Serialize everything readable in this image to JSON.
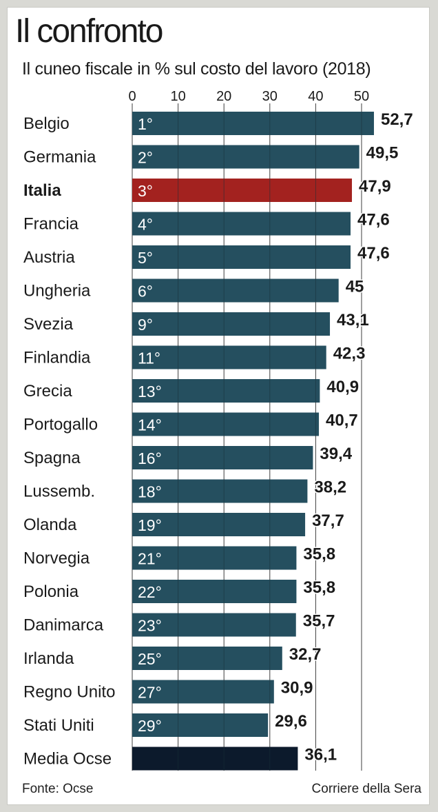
{
  "title": "Il confronto",
  "subtitle": "Il cuneo fiscale in % sul costo del lavoro (2018)",
  "source": "Fonte: Ocse",
  "publisher": "Corriere della Sera",
  "colors": {
    "default_bar": "#254f5f",
    "highlight_bar": "#a3221f",
    "average_bar": "#0c1a2c"
  },
  "chart_data": {
    "type": "bar",
    "orientation": "horizontal",
    "xlim": [
      0,
      55
    ],
    "ticks": [
      "0",
      "10",
      "20",
      "30",
      "40",
      "50"
    ],
    "tick_values": [
      0,
      10,
      20,
      30,
      40,
      50
    ],
    "grid": true,
    "categories": [
      "Belgio",
      "Germania",
      "Italia",
      "Francia",
      "Austria",
      "Ungheria",
      "Svezia",
      "Finlandia",
      "Grecia",
      "Portogallo",
      "Spagna",
      "Lussemb.",
      "Olanda",
      "Norvegia",
      "Polonia",
      "Danimarca",
      "Irlanda",
      "Regno Unito",
      "Stati Uniti",
      "Media Ocse"
    ],
    "values": [
      52.7,
      49.5,
      47.9,
      47.6,
      47.6,
      45,
      43.1,
      42.3,
      40.9,
      40.7,
      39.4,
      38.2,
      37.7,
      35.8,
      35.8,
      35.7,
      32.7,
      30.9,
      29.6,
      36.1
    ],
    "value_labels": [
      "52,7",
      "49,5",
      "47,9",
      "47,6",
      "47,6",
      "45",
      "43,1",
      "42,3",
      "40,9",
      "40,7",
      "39,4",
      "38,2",
      "37,7",
      "35,8",
      "35,8",
      "35,7",
      "32,7",
      "30,9",
      "29,6",
      "36,1"
    ],
    "rank_labels": [
      "1°",
      "2°",
      "3°",
      "4°",
      "5°",
      "6°",
      "9°",
      "11°",
      "13°",
      "14°",
      "16°",
      "18°",
      "19°",
      "21°",
      "22°",
      "23°",
      "25°",
      "27°",
      "29°",
      ""
    ],
    "highlight": [
      "Italia"
    ],
    "average": [
      "Media Ocse"
    ]
  }
}
